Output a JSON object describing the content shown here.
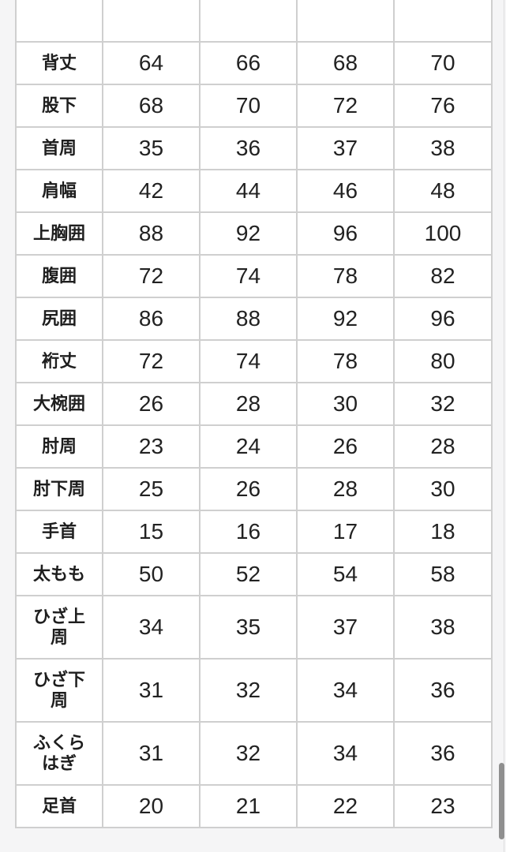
{
  "colors": {
    "page_background": "#f5f5f6",
    "cell_background": "#ffffff",
    "border": "#cfcfcf",
    "text": "#1e1e1e",
    "scrollbar_thumb": "#8f8f8f"
  },
  "size_table": {
    "rows": [
      {
        "label": "背丈",
        "values": [
          "64",
          "66",
          "68",
          "70"
        ]
      },
      {
        "label": "股下",
        "values": [
          "68",
          "70",
          "72",
          "76"
        ]
      },
      {
        "label": "首周",
        "values": [
          "35",
          "36",
          "37",
          "38"
        ]
      },
      {
        "label": "肩幅",
        "values": [
          "42",
          "44",
          "46",
          "48"
        ]
      },
      {
        "label": "上胸囲",
        "values": [
          "88",
          "92",
          "96",
          "100"
        ]
      },
      {
        "label": "腹囲",
        "values": [
          "72",
          "74",
          "78",
          "82"
        ]
      },
      {
        "label": "尻囲",
        "values": [
          "86",
          "88",
          "92",
          "96"
        ]
      },
      {
        "label": "裄丈",
        "values": [
          "72",
          "74",
          "78",
          "80"
        ]
      },
      {
        "label": "大椀囲",
        "values": [
          "26",
          "28",
          "30",
          "32"
        ]
      },
      {
        "label": "肘周",
        "values": [
          "23",
          "24",
          "26",
          "28"
        ]
      },
      {
        "label": "肘下周",
        "values": [
          "25",
          "26",
          "28",
          "30"
        ]
      },
      {
        "label": "手首",
        "values": [
          "15",
          "16",
          "17",
          "18"
        ]
      },
      {
        "label": "太もも",
        "values": [
          "50",
          "52",
          "54",
          "58"
        ]
      },
      {
        "label": "ひざ上周",
        "values": [
          "34",
          "35",
          "37",
          "38"
        ]
      },
      {
        "label": "ひざ下周",
        "values": [
          "31",
          "32",
          "34",
          "36"
        ]
      },
      {
        "label": "ふくらはぎ",
        "values": [
          "31",
          "32",
          "34",
          "36"
        ]
      },
      {
        "label": "足首",
        "values": [
          "20",
          "21",
          "22",
          "23"
        ]
      }
    ]
  }
}
